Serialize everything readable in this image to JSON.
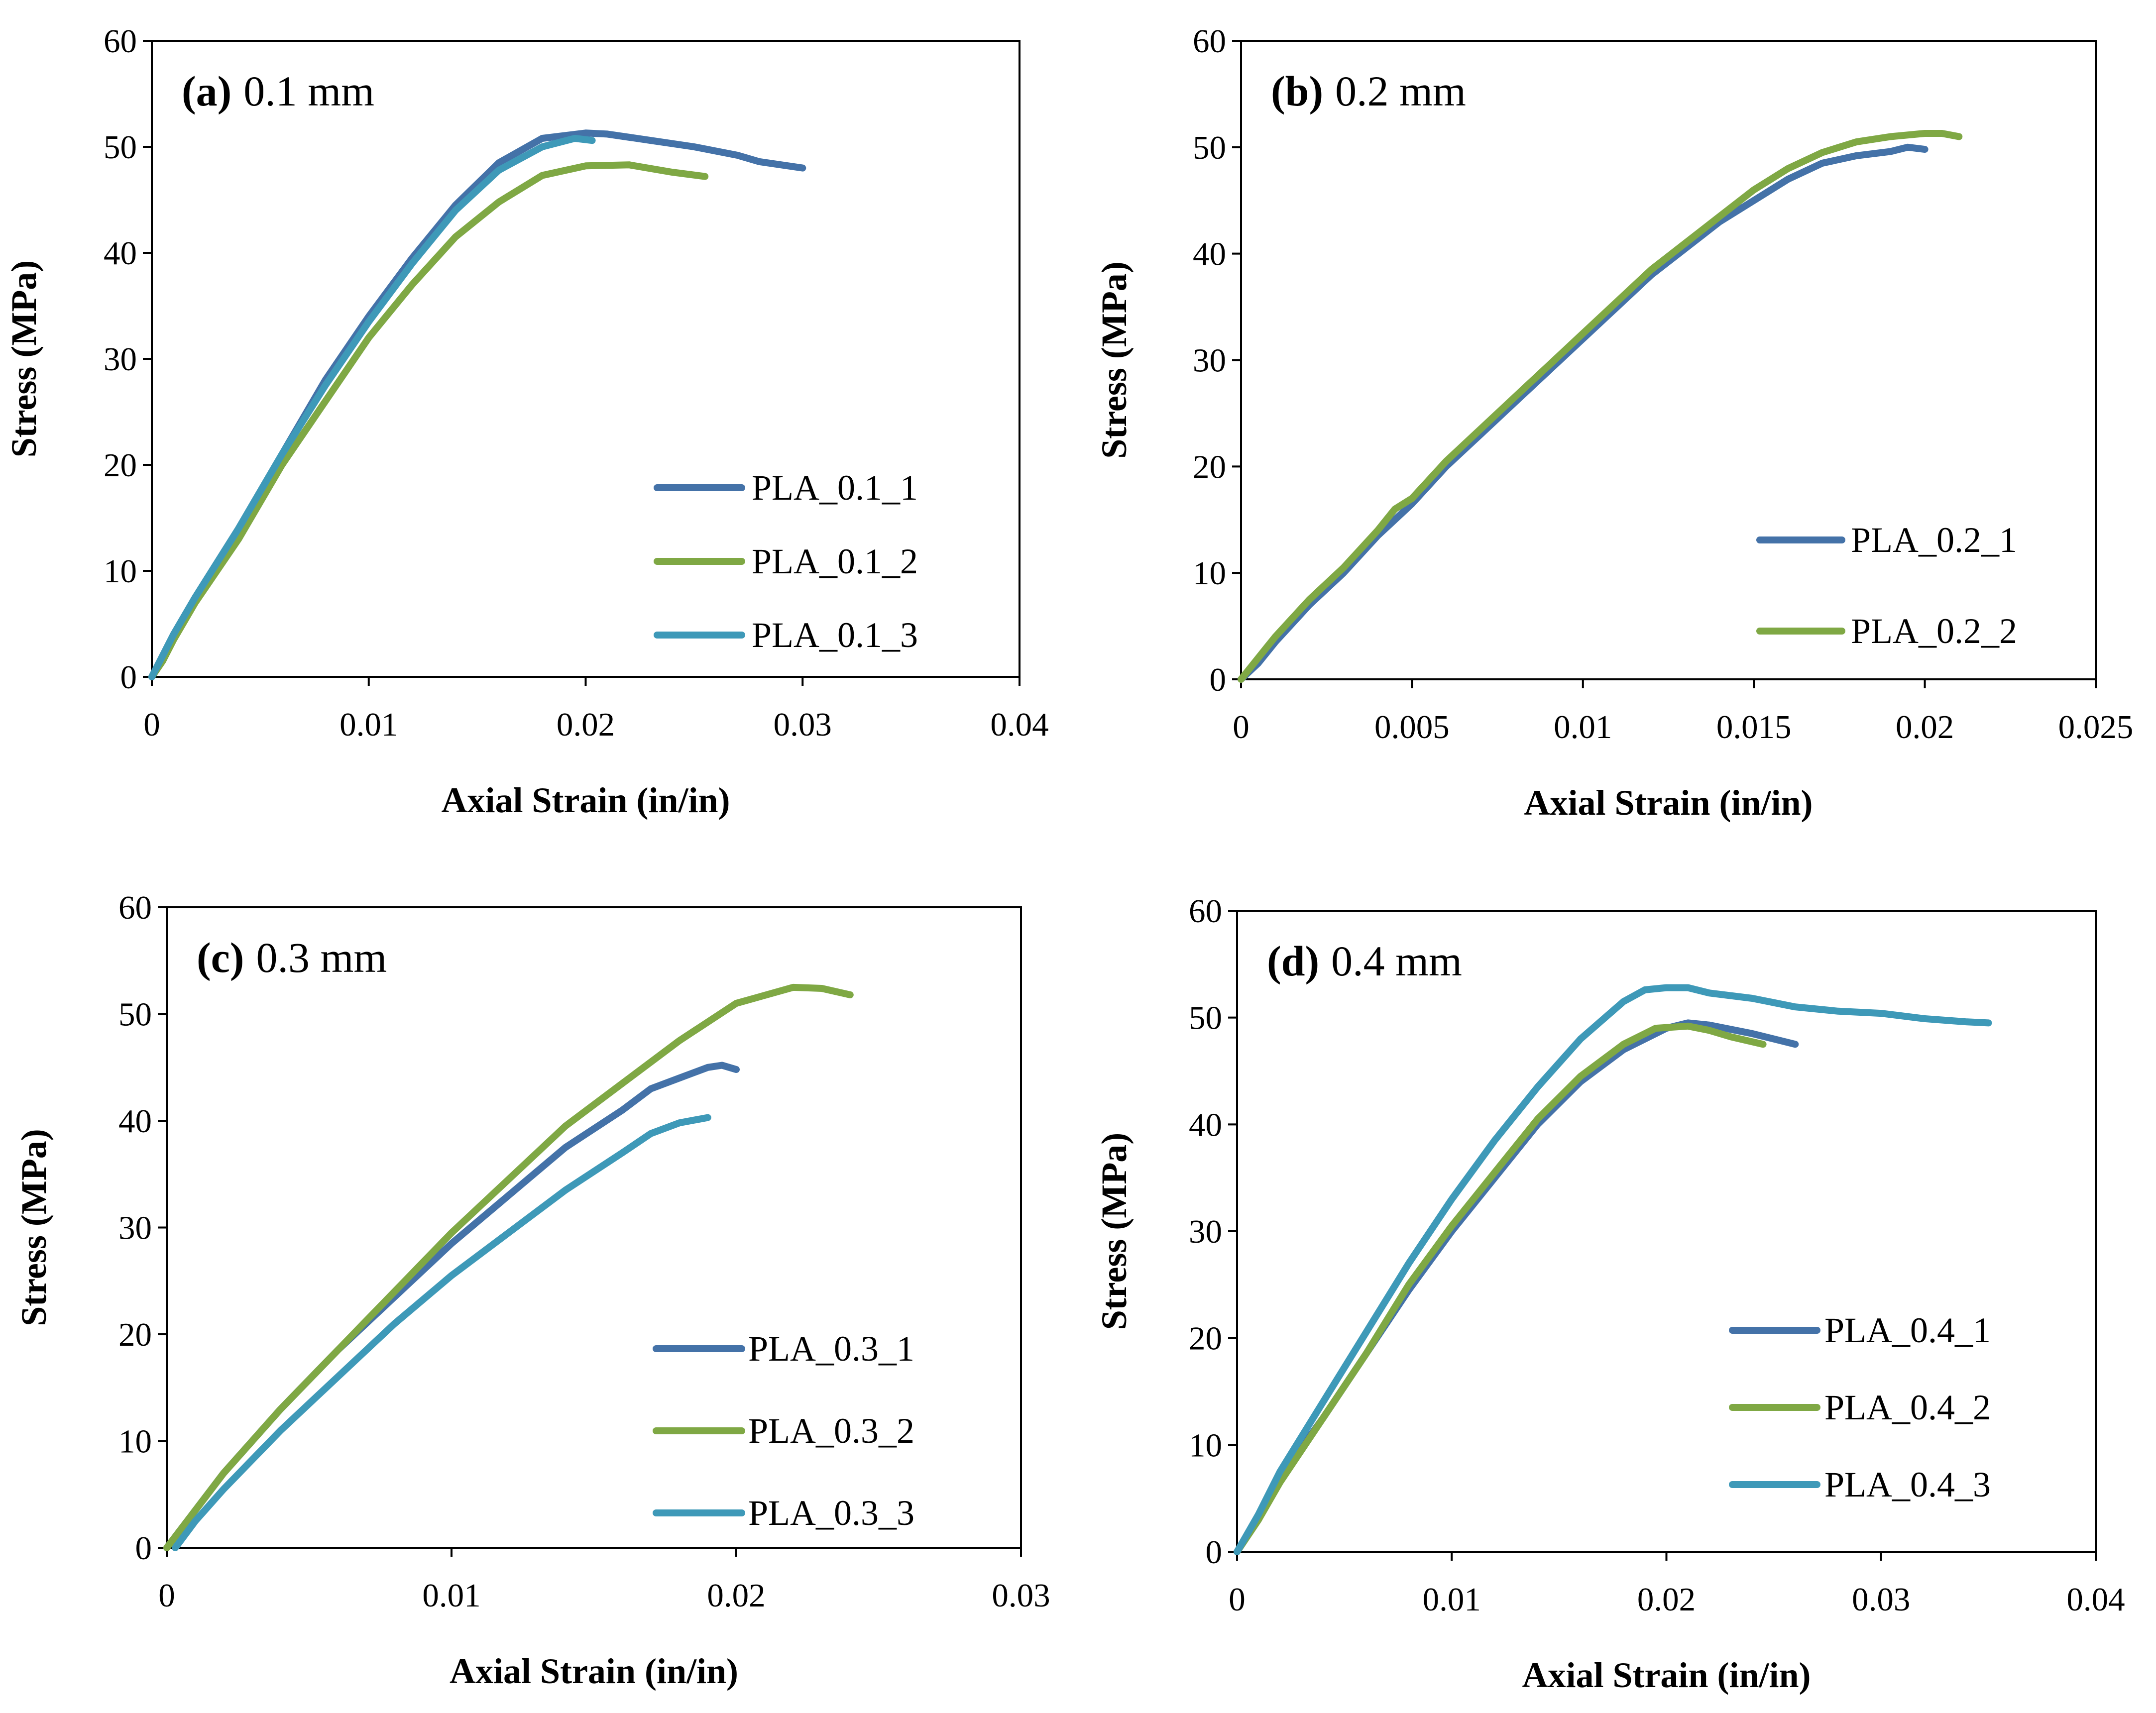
{
  "chart_data": [
    {
      "type": "line",
      "title_letter": "(a)",
      "title_text": "0.1 mm",
      "xlabel": "Axial Strain (in/in)",
      "ylabel": "Stress (MPa)",
      "xlim": [
        0,
        0.04
      ],
      "ylim": [
        0,
        60
      ],
      "xticks": [
        0,
        0.01,
        0.02,
        0.03,
        0.04
      ],
      "xtick_labels": [
        "0",
        "0.01",
        "0.02",
        "0.03",
        "0.04"
      ],
      "yticks": [
        0,
        10,
        20,
        30,
        40,
        50,
        60
      ],
      "ytick_labels": [
        "0",
        "10",
        "20",
        "30",
        "40",
        "50",
        "60"
      ],
      "legend_position": "bottom-right",
      "series": [
        {
          "name": "PLA_0.1_1",
          "color": "#4472A8",
          "points": [
            [
              0,
              0
            ],
            [
              0.0005,
              2
            ],
            [
              0.001,
              4
            ],
            [
              0.002,
              7.5
            ],
            [
              0.004,
              14
            ],
            [
              0.006,
              21
            ],
            [
              0.008,
              28
            ],
            [
              0.01,
              34
            ],
            [
              0.012,
              39.5
            ],
            [
              0.014,
              44.5
            ],
            [
              0.016,
              48.5
            ],
            [
              0.018,
              50.8
            ],
            [
              0.02,
              51.3
            ],
            [
              0.021,
              51.2
            ],
            [
              0.023,
              50.6
            ],
            [
              0.025,
              50
            ],
            [
              0.027,
              49.2
            ],
            [
              0.028,
              48.6
            ],
            [
              0.03,
              48
            ]
          ]
        },
        {
          "name": "PLA_0.1_2",
          "color": "#7FA844",
          "points": [
            [
              0,
              0
            ],
            [
              0.0005,
              1.5
            ],
            [
              0.001,
              3.5
            ],
            [
              0.002,
              7
            ],
            [
              0.004,
              13
            ],
            [
              0.006,
              20
            ],
            [
              0.008,
              26
            ],
            [
              0.01,
              32
            ],
            [
              0.012,
              37
            ],
            [
              0.014,
              41.5
            ],
            [
              0.016,
              44.8
            ],
            [
              0.018,
              47.3
            ],
            [
              0.02,
              48.2
            ],
            [
              0.022,
              48.3
            ],
            [
              0.024,
              47.6
            ],
            [
              0.0255,
              47.2
            ]
          ]
        },
        {
          "name": "PLA_0.1_3",
          "color": "#3E99B8",
          "points": [
            [
              0,
              0
            ],
            [
              0.0005,
              2
            ],
            [
              0.001,
              4
            ],
            [
              0.002,
              7.5
            ],
            [
              0.004,
              14
            ],
            [
              0.006,
              21
            ],
            [
              0.008,
              27.5
            ],
            [
              0.01,
              33.5
            ],
            [
              0.012,
              39
            ],
            [
              0.014,
              44
            ],
            [
              0.016,
              47.8
            ],
            [
              0.018,
              50
            ],
            [
              0.0195,
              50.8
            ],
            [
              0.0203,
              50.6
            ]
          ]
        }
      ]
    },
    {
      "type": "line",
      "title_letter": "(b)",
      "title_text": "0.2 mm",
      "xlabel": "Axial Strain (in/in)",
      "ylabel": "Stress (MPa)",
      "xlim": [
        0,
        0.025
      ],
      "ylim": [
        0,
        60
      ],
      "xticks": [
        0,
        0.005,
        0.01,
        0.015,
        0.02,
        0.025
      ],
      "xtick_labels": [
        "0",
        "0.005",
        "0.01",
        "0.015",
        "0.02",
        "0.025"
      ],
      "yticks": [
        0,
        10,
        20,
        30,
        40,
        50,
        60
      ],
      "ytick_labels": [
        "0",
        "10",
        "20",
        "30",
        "40",
        "50",
        "60"
      ],
      "legend_position": "bottom-right",
      "series": [
        {
          "name": "PLA_0.2_1",
          "color": "#4472A8",
          "points": [
            [
              0,
              0
            ],
            [
              0.0005,
              1.5
            ],
            [
              0.001,
              3.5
            ],
            [
              0.002,
              7
            ],
            [
              0.003,
              10
            ],
            [
              0.004,
              13.5
            ],
            [
              0.005,
              16.5
            ],
            [
              0.006,
              20
            ],
            [
              0.007,
              23
            ],
            [
              0.008,
              26
            ],
            [
              0.009,
              29
            ],
            [
              0.01,
              32
            ],
            [
              0.011,
              35
            ],
            [
              0.012,
              38
            ],
            [
              0.013,
              40.5
            ],
            [
              0.014,
              43
            ],
            [
              0.015,
              45
            ],
            [
              0.016,
              47
            ],
            [
              0.017,
              48.5
            ],
            [
              0.018,
              49.2
            ],
            [
              0.019,
              49.6
            ],
            [
              0.0195,
              50
            ],
            [
              0.02,
              49.8
            ]
          ]
        },
        {
          "name": "PLA_0.2_2",
          "color": "#7FA844",
          "points": [
            [
              0,
              0
            ],
            [
              0.0005,
              2
            ],
            [
              0.001,
              4
            ],
            [
              0.002,
              7.5
            ],
            [
              0.003,
              10.5
            ],
            [
              0.004,
              14
            ],
            [
              0.0045,
              16
            ],
            [
              0.005,
              17
            ],
            [
              0.006,
              20.5
            ],
            [
              0.007,
              23.5
            ],
            [
              0.008,
              26.5
            ],
            [
              0.009,
              29.5
            ],
            [
              0.01,
              32.5
            ],
            [
              0.011,
              35.5
            ],
            [
              0.012,
              38.5
            ],
            [
              0.013,
              41
            ],
            [
              0.014,
              43.5
            ],
            [
              0.015,
              46
            ],
            [
              0.016,
              48
            ],
            [
              0.017,
              49.5
            ],
            [
              0.018,
              50.5
            ],
            [
              0.019,
              51
            ],
            [
              0.02,
              51.3
            ],
            [
              0.0205,
              51.3
            ],
            [
              0.021,
              51
            ]
          ]
        }
      ]
    },
    {
      "type": "line",
      "title_letter": "(c)",
      "title_text": "0.3 mm",
      "xlabel": "Axial Strain (in/in)",
      "ylabel": "Stress (MPa)",
      "xlim": [
        0,
        0.03
      ],
      "ylim": [
        0,
        60
      ],
      "xticks": [
        0,
        0.01,
        0.02,
        0.03
      ],
      "xtick_labels": [
        "0",
        "0.01",
        "0.02",
        "0.03"
      ],
      "yticks": [
        0,
        10,
        20,
        30,
        40,
        50,
        60
      ],
      "ytick_labels": [
        "0",
        "10",
        "20",
        "30",
        "40",
        "50",
        "60"
      ],
      "legend_position": "bottom-right",
      "series": [
        {
          "name": "PLA_0.3_1",
          "color": "#4472A8",
          "points": [
            [
              0,
              0
            ],
            [
              0.001,
              3.5
            ],
            [
              0.002,
              7
            ],
            [
              0.003,
              10
            ],
            [
              0.004,
              13
            ],
            [
              0.006,
              18.5
            ],
            [
              0.008,
              23.5
            ],
            [
              0.01,
              28.5
            ],
            [
              0.012,
              33
            ],
            [
              0.014,
              37.5
            ],
            [
              0.016,
              41
            ],
            [
              0.017,
              43
            ],
            [
              0.018,
              44
            ],
            [
              0.019,
              45
            ],
            [
              0.0195,
              45.2
            ],
            [
              0.02,
              44.8
            ]
          ]
        },
        {
          "name": "PLA_0.3_2",
          "color": "#7FA844",
          "points": [
            [
              0,
              0
            ],
            [
              0.001,
              3.5
            ],
            [
              0.002,
              7
            ],
            [
              0.004,
              13
            ],
            [
              0.006,
              18.5
            ],
            [
              0.008,
              24
            ],
            [
              0.01,
              29.5
            ],
            [
              0.012,
              34.5
            ],
            [
              0.014,
              39.5
            ],
            [
              0.016,
              43.5
            ],
            [
              0.018,
              47.5
            ],
            [
              0.02,
              51
            ],
            [
              0.022,
              52.5
            ],
            [
              0.023,
              52.4
            ],
            [
              0.024,
              51.8
            ]
          ]
        },
        {
          "name": "PLA_0.3_3",
          "color": "#3E99B8",
          "points": [
            [
              0.0003,
              0
            ],
            [
              0.001,
              2.5
            ],
            [
              0.002,
              5.5
            ],
            [
              0.004,
              11
            ],
            [
              0.006,
              16
            ],
            [
              0.008,
              21
            ],
            [
              0.01,
              25.5
            ],
            [
              0.012,
              29.5
            ],
            [
              0.014,
              33.5
            ],
            [
              0.016,
              37
            ],
            [
              0.017,
              38.8
            ],
            [
              0.018,
              39.8
            ],
            [
              0.019,
              40.3
            ]
          ]
        }
      ]
    },
    {
      "type": "line",
      "title_letter": "(d)",
      "title_text": "0.4 mm",
      "xlabel": "Axial Strain (in/in)",
      "ylabel": "Stress (MPa)",
      "xlim": [
        0,
        0.04
      ],
      "ylim": [
        0,
        60
      ],
      "xticks": [
        0,
        0.01,
        0.02,
        0.03,
        0.04
      ],
      "xtick_labels": [
        "0",
        "0.01",
        "0.02",
        "0.03",
        "0.04"
      ],
      "yticks": [
        0,
        10,
        20,
        30,
        40,
        50,
        60
      ],
      "ytick_labels": [
        "0",
        "10",
        "20",
        "30",
        "40",
        "50",
        "60"
      ],
      "legend_position": "bottom-right",
      "series": [
        {
          "name": "PLA_0.4_1",
          "color": "#4472A8",
          "points": [
            [
              0,
              0
            ],
            [
              0.001,
              3
            ],
            [
              0.002,
              7
            ],
            [
              0.004,
              12.5
            ],
            [
              0.006,
              18.5
            ],
            [
              0.008,
              24.5
            ],
            [
              0.01,
              30
            ],
            [
              0.012,
              35
            ],
            [
              0.014,
              40
            ],
            [
              0.016,
              44
            ],
            [
              0.018,
              47
            ],
            [
              0.02,
              49
            ],
            [
              0.021,
              49.5
            ],
            [
              0.022,
              49.3
            ],
            [
              0.024,
              48.5
            ],
            [
              0.026,
              47.5
            ]
          ]
        },
        {
          "name": "PLA_0.4_2",
          "color": "#7FA844",
          "points": [
            [
              0,
              0
            ],
            [
              0.001,
              3
            ],
            [
              0.002,
              6.5
            ],
            [
              0.004,
              12.5
            ],
            [
              0.006,
              18.5
            ],
            [
              0.008,
              25
            ],
            [
              0.01,
              30.5
            ],
            [
              0.012,
              35.5
            ],
            [
              0.014,
              40.5
            ],
            [
              0.016,
              44.5
            ],
            [
              0.018,
              47.5
            ],
            [
              0.0195,
              49
            ],
            [
              0.021,
              49.2
            ],
            [
              0.022,
              48.8
            ],
            [
              0.023,
              48.2
            ],
            [
              0.0245,
              47.5
            ]
          ]
        },
        {
          "name": "PLA_0.4_3",
          "color": "#3E99B8",
          "points": [
            [
              0,
              0
            ],
            [
              0.001,
              3.5
            ],
            [
              0.002,
              7.5
            ],
            [
              0.004,
              14
            ],
            [
              0.006,
              20.5
            ],
            [
              0.008,
              27
            ],
            [
              0.01,
              33
            ],
            [
              0.012,
              38.5
            ],
            [
              0.014,
              43.5
            ],
            [
              0.016,
              48
            ],
            [
              0.018,
              51.5
            ],
            [
              0.019,
              52.6
            ],
            [
              0.02,
              52.8
            ],
            [
              0.021,
              52.8
            ],
            [
              0.022,
              52.3
            ],
            [
              0.024,
              51.8
            ],
            [
              0.026,
              51
            ],
            [
              0.028,
              50.6
            ],
            [
              0.03,
              50.4
            ],
            [
              0.032,
              49.9
            ],
            [
              0.034,
              49.6
            ],
            [
              0.035,
              49.5
            ]
          ]
        }
      ]
    }
  ]
}
